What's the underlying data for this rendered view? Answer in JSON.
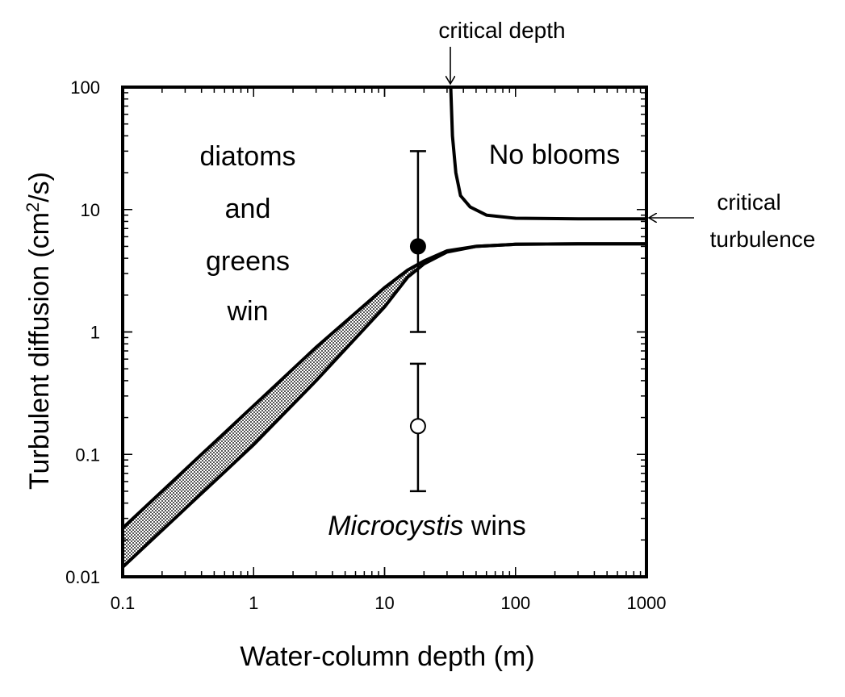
{
  "chart_data": {
    "type": "line",
    "xscale": "log",
    "yscale": "log",
    "xlim": [
      0.1,
      1000
    ],
    "ylim": [
      0.01,
      100
    ],
    "xlabel": "Water-column depth (m)",
    "ylabel_main": "Turbulent diffusion (cm",
    "ylabel_sup": "2",
    "ylabel_end": "/s)",
    "x_ticks": [
      0.1,
      1,
      10,
      100,
      1000
    ],
    "x_tick_labels": [
      "0.1",
      "1",
      "10",
      "100",
      "1000"
    ],
    "y_ticks": [
      0.01,
      0.1,
      1,
      10,
      100
    ],
    "y_tick_labels": [
      "0.01",
      "0.1",
      "1",
      "10",
      "100"
    ],
    "grid": false,
    "series": [
      {
        "role": "boundary-upper",
        "x": [
          0.1,
          0.3,
          1,
          3,
          10,
          15,
          20,
          30,
          50,
          100,
          300,
          1000
        ],
        "y": [
          0.025,
          0.075,
          0.25,
          0.75,
          2.3,
          3.2,
          3.8,
          4.6,
          5.0,
          5.2,
          5.25,
          5.25
        ]
      },
      {
        "role": "boundary-lower",
        "x": [
          0.1,
          0.3,
          1,
          3,
          10,
          15,
          20,
          30,
          50,
          100,
          300,
          1000
        ],
        "y": [
          0.012,
          0.036,
          0.12,
          0.4,
          1.6,
          2.8,
          3.6,
          4.5,
          5.0,
          5.2,
          5.25,
          5.25
        ]
      },
      {
        "role": "no-bloom-boundary",
        "x": [
          32,
          33,
          35,
          38,
          45,
          60,
          100,
          300,
          1000
        ],
        "y": [
          100,
          40,
          20,
          13,
          10.5,
          9,
          8.5,
          8.4,
          8.4
        ]
      }
    ],
    "points": [
      {
        "marker": "filled-circle",
        "x": 18,
        "y": 5,
        "y_err_low": 1,
        "y_err_high": 30
      },
      {
        "marker": "open-circle",
        "x": 18,
        "y": 0.17,
        "y_err_low": 0.05,
        "y_err_high": 0.55
      }
    ],
    "regions": {
      "upper_left": [
        "diatoms",
        "and",
        "greens",
        "win"
      ],
      "upper_right": "No blooms",
      "bottom_italic": "Microcystis",
      "bottom_rest": " wins"
    },
    "annotations": {
      "critical_depth": "critical depth",
      "critical_turbulence_line1": "critical",
      "critical_turbulence_line2": "turbulence"
    },
    "colors": {
      "ink": "#000000",
      "background": "#ffffff",
      "band_fill": "#9a9a9a"
    }
  }
}
